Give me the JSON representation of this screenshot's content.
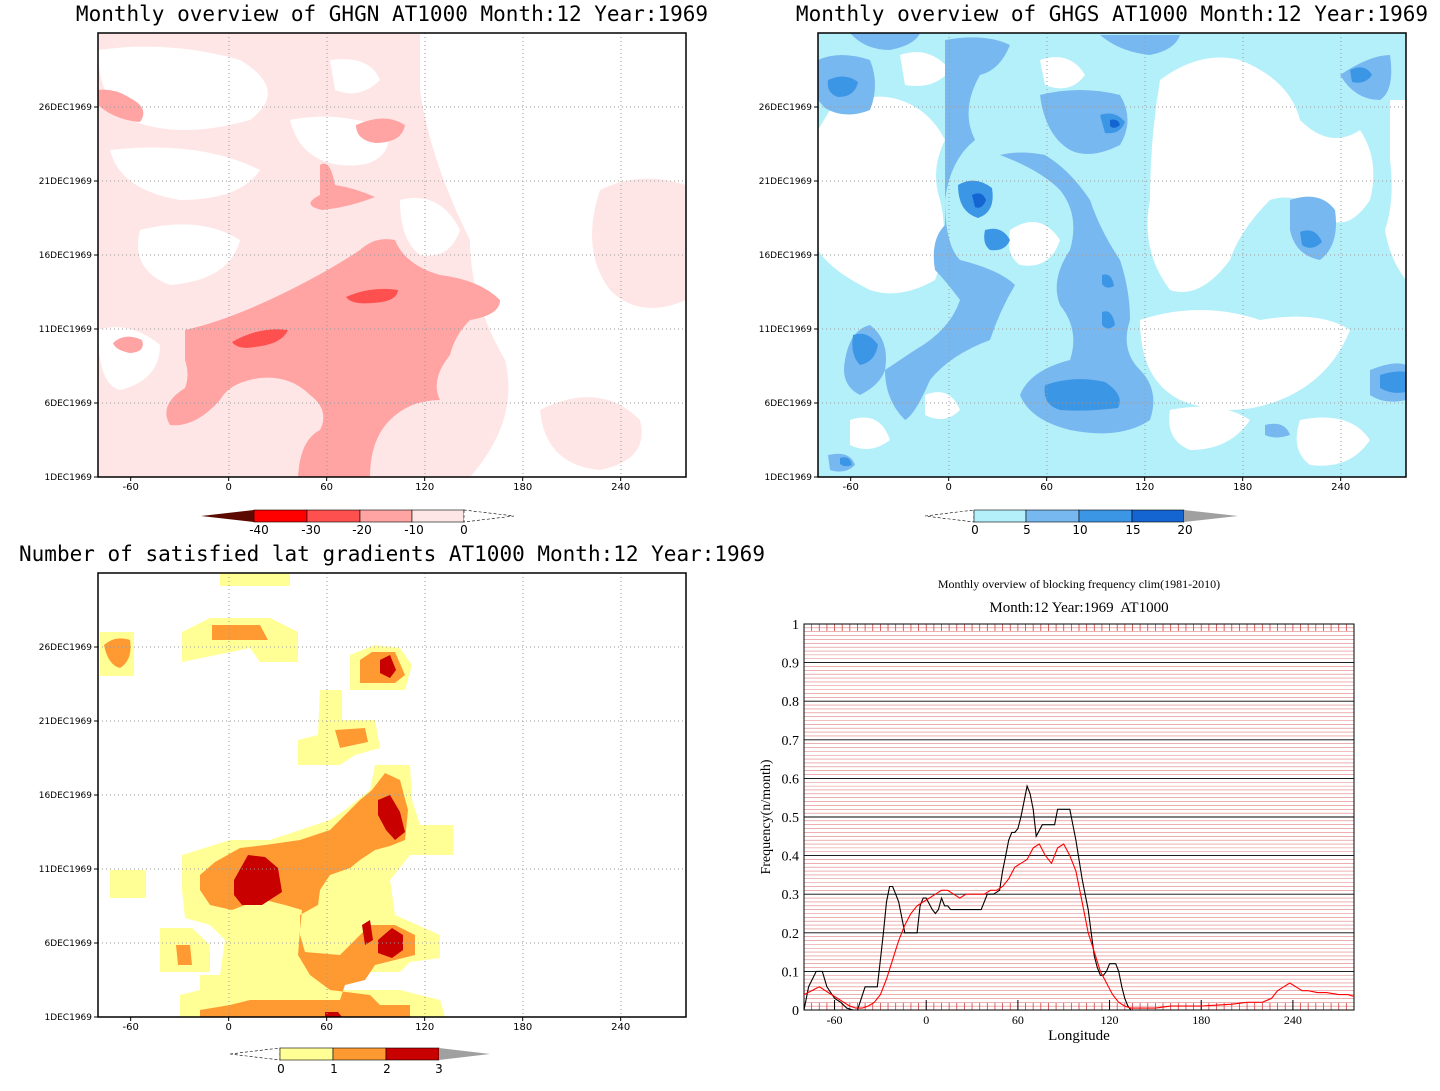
{
  "chart_data": [
    {
      "type": "heatmap",
      "title": "Monthly overview of GHGN AT1000 Month:12 Year:1969",
      "x_ticks": [
        "-60",
        "0",
        "60",
        "120",
        "180",
        "240"
      ],
      "x_tick_values": [
        -60,
        0,
        60,
        120,
        180,
        240
      ],
      "xlim": [
        -80,
        280
      ],
      "y_ticks": [
        "1DEC1969",
        "6DEC1969",
        "11DEC1969",
        "16DEC1969",
        "21DEC1969",
        "26DEC1969"
      ],
      "y_tick_values": [
        1,
        6,
        11,
        16,
        21,
        26
      ],
      "ylim": [
        1,
        31
      ],
      "colorbar": {
        "labels": [
          "-40",
          "-30",
          "-20",
          "-10",
          "0"
        ],
        "colors": [
          "#5c0a00",
          "#ff0000",
          "#ff5050",
          "#ffa3a3",
          "#ffe6e6"
        ]
      },
      "grid": true
    },
    {
      "type": "heatmap",
      "title": "Monthly overview of GHGS AT1000 Month:12 Year:1969",
      "x_ticks": [
        "-60",
        "0",
        "60",
        "120",
        "180",
        "240"
      ],
      "x_tick_values": [
        -60,
        0,
        60,
        120,
        180,
        240
      ],
      "xlim": [
        -80,
        280
      ],
      "y_ticks": [
        "1DEC1969",
        "6DEC1969",
        "11DEC1969",
        "16DEC1969",
        "21DEC1969",
        "26DEC1969"
      ],
      "y_tick_values": [
        1,
        6,
        11,
        16,
        21,
        26
      ],
      "ylim": [
        1,
        31
      ],
      "colorbar": {
        "labels": [
          "0",
          "5",
          "10",
          "15",
          "20"
        ],
        "colors": [
          "#b4f0fa",
          "#78b8f0",
          "#3c96e6",
          "#1464d2",
          "#a0a0a0"
        ]
      },
      "grid": true
    },
    {
      "type": "heatmap",
      "title": "Number of satisfied lat gradients AT1000 Month:12 Year:1969",
      "x_ticks": [
        "-60",
        "0",
        "60",
        "120",
        "180",
        "240"
      ],
      "x_tick_values": [
        -60,
        0,
        60,
        120,
        180,
        240
      ],
      "xlim": [
        -80,
        280
      ],
      "y_ticks": [
        "1DEC1969",
        "6DEC1969",
        "11DEC1969",
        "16DEC1969",
        "21DEC1969",
        "26DEC1969"
      ],
      "y_tick_values": [
        1,
        6,
        11,
        16,
        21,
        26
      ],
      "ylim": [
        1,
        31
      ],
      "colorbar": {
        "labels": [
          "0",
          "1",
          "2",
          "3"
        ],
        "colors": [
          "#ffff96",
          "#ff9a32",
          "#c80000",
          "#a0a0a0"
        ]
      },
      "grid": true
    },
    {
      "type": "line",
      "title": "Monthly overview of blocking frequency clim(1981-2010)",
      "subtitle": "Month:12 Year:1969  AT1000",
      "xlabel": "Longitude",
      "ylabel": "Frequency(n/month)",
      "xlim": [
        -80,
        280
      ],
      "ylim": [
        0,
        1
      ],
      "x_ticks": [
        "-60",
        "0",
        "60",
        "120",
        "180",
        "240"
      ],
      "x_tick_values": [
        -60,
        0,
        60,
        120,
        180,
        240
      ],
      "y_ticks": [
        "0",
        "0.1",
        "0.2",
        "0.3",
        "0.4",
        "0.5",
        "0.6",
        "0.7",
        "0.8",
        "0.9",
        "1"
      ],
      "y_tick_values": [
        0,
        0.1,
        0.2,
        0.3,
        0.4,
        0.5,
        0.6,
        0.7,
        0.8,
        0.9,
        1
      ],
      "grid": true,
      "series": [
        {
          "color": "#000000",
          "x": [
            -80,
            -77,
            -72,
            -68,
            -65,
            -60,
            -56,
            -52,
            -48,
            -45,
            -40,
            -36,
            -32,
            -30,
            -28,
            -26,
            -24,
            -22,
            -20,
            -18,
            -14,
            -10,
            -6,
            -4,
            -2,
            0,
            4,
            6,
            8,
            10,
            12,
            14,
            16,
            18,
            20,
            24,
            30,
            36,
            40,
            44,
            48,
            50,
            52,
            54,
            56,
            58,
            60,
            62,
            64,
            66,
            68,
            70,
            72,
            76,
            80,
            84,
            86,
            90,
            94,
            98,
            102,
            104,
            106,
            108,
            110,
            112,
            114,
            116,
            118,
            120,
            122,
            124,
            126,
            128,
            130,
            132,
            134,
            136,
            140,
            150,
            200,
            280
          ],
          "y": [
            0,
            0.06,
            0.1,
            0.1,
            0.06,
            0.03,
            0.02,
            0.005,
            0,
            0,
            0.06,
            0.06,
            0.06,
            0.13,
            0.2,
            0.28,
            0.32,
            0.32,
            0.3,
            0.28,
            0.2,
            0.2,
            0.2,
            0.27,
            0.29,
            0.29,
            0.26,
            0.25,
            0.26,
            0.29,
            0.27,
            0.27,
            0.26,
            0.26,
            0.26,
            0.26,
            0.26,
            0.26,
            0.3,
            0.3,
            0.31,
            0.36,
            0.4,
            0.44,
            0.46,
            0.46,
            0.47,
            0.5,
            0.54,
            0.58,
            0.56,
            0.52,
            0.45,
            0.48,
            0.48,
            0.48,
            0.52,
            0.52,
            0.52,
            0.44,
            0.34,
            0.3,
            0.26,
            0.2,
            0.14,
            0.11,
            0.09,
            0.09,
            0.1,
            0.12,
            0.12,
            0.12,
            0.1,
            0.06,
            0.03,
            0.01,
            0,
            0,
            0,
            0,
            0,
            0
          ]
        },
        {
          "color": "#ff0000",
          "x": [
            -80,
            -75,
            -70,
            -66,
            -62,
            -58,
            -54,
            -50,
            -46,
            -42,
            -38,
            -34,
            -30,
            -26,
            -22,
            -18,
            -14,
            -10,
            -6,
            -2,
            2,
            6,
            10,
            14,
            18,
            22,
            26,
            30,
            34,
            38,
            42,
            46,
            50,
            54,
            58,
            62,
            66,
            70,
            74,
            78,
            82,
            86,
            90,
            94,
            98,
            102,
            106,
            110,
            114,
            118,
            122,
            126,
            130,
            134,
            138,
            142,
            150,
            160,
            180,
            200,
            210,
            220,
            226,
            230,
            234,
            238,
            242,
            246,
            250,
            256,
            262,
            270,
            276,
            280
          ],
          "y": [
            0.04,
            0.05,
            0.06,
            0.05,
            0.04,
            0.03,
            0.02,
            0.01,
            0.005,
            0.005,
            0.01,
            0.02,
            0.04,
            0.08,
            0.13,
            0.18,
            0.22,
            0.25,
            0.27,
            0.28,
            0.29,
            0.3,
            0.31,
            0.31,
            0.3,
            0.29,
            0.3,
            0.3,
            0.3,
            0.3,
            0.31,
            0.31,
            0.32,
            0.34,
            0.37,
            0.38,
            0.39,
            0.42,
            0.43,
            0.4,
            0.38,
            0.42,
            0.43,
            0.4,
            0.36,
            0.28,
            0.2,
            0.15,
            0.1,
            0.07,
            0.04,
            0.02,
            0.01,
            0.005,
            0.005,
            0.005,
            0.005,
            0.01,
            0.01,
            0.015,
            0.02,
            0.02,
            0.03,
            0.05,
            0.06,
            0.07,
            0.06,
            0.05,
            0.05,
            0.045,
            0.045,
            0.04,
            0.04,
            0.035
          ]
        }
      ]
    }
  ]
}
